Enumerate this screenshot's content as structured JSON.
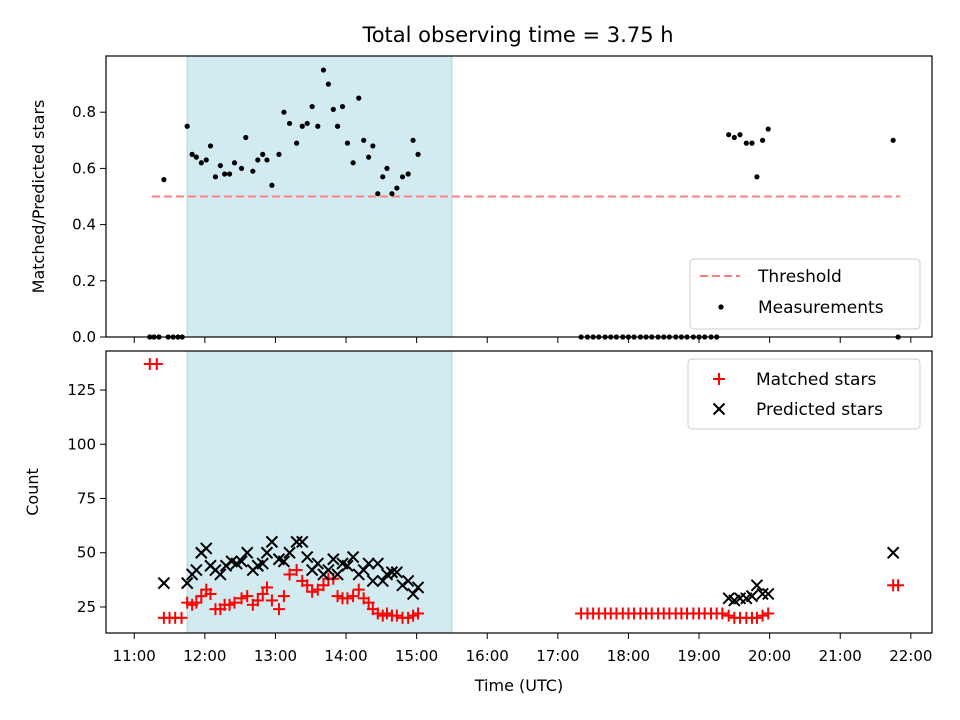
{
  "chart_data": {
    "type": "scatter",
    "title": "Total observing time = 3.75 h",
    "xlabel": "Time (UTC)",
    "x_unit": "hour",
    "xlim": [
      10.6,
      22.3
    ],
    "xticks": [
      11,
      12,
      13,
      14,
      15,
      16,
      17,
      18,
      19,
      20,
      21,
      22
    ],
    "xtick_labels": [
      "11:00",
      "12:00",
      "13:00",
      "14:00",
      "15:00",
      "16:00",
      "17:00",
      "18:00",
      "19:00",
      "20:00",
      "21:00",
      "22:00"
    ],
    "shaded_interval": [
      11.75,
      15.5
    ],
    "shade_color": "#d2ebf1",
    "panels": [
      {
        "ylabel": "Matched/Predicted stars",
        "ylim": [
          0,
          1.0
        ],
        "yticks": [
          0.0,
          0.2,
          0.4,
          0.6,
          0.8
        ],
        "ytick_labels": [
          "0.0",
          "0.2",
          "0.4",
          "0.6",
          "0.8"
        ],
        "legend": {
          "position": "lower-right",
          "entries": [
            "Threshold",
            "Measurements"
          ]
        },
        "threshold": {
          "name": "Threshold",
          "y": 0.5,
          "x_range": [
            11.25,
            21.85
          ],
          "color": "#ff7f7f"
        },
        "series": [
          {
            "name": "Measurements",
            "marker": "dot",
            "color": "#000000",
            "points": [
              [
                11.22,
                0.0
              ],
              [
                11.28,
                0.0
              ],
              [
                11.35,
                0.0
              ],
              [
                11.42,
                0.56
              ],
              [
                11.48,
                0.0
              ],
              [
                11.55,
                0.0
              ],
              [
                11.62,
                0.0
              ],
              [
                11.68,
                0.0
              ],
              [
                11.75,
                0.75
              ],
              [
                11.82,
                0.65
              ],
              [
                11.88,
                0.64
              ],
              [
                11.95,
                0.62
              ],
              [
                12.02,
                0.63
              ],
              [
                12.08,
                0.68
              ],
              [
                12.15,
                0.57
              ],
              [
                12.22,
                0.61
              ],
              [
                12.28,
                0.58
              ],
              [
                12.35,
                0.58
              ],
              [
                12.42,
                0.62
              ],
              [
                12.52,
                0.6
              ],
              [
                12.58,
                0.71
              ],
              [
                12.68,
                0.59
              ],
              [
                12.75,
                0.63
              ],
              [
                12.82,
                0.65
              ],
              [
                12.88,
                0.63
              ],
              [
                12.95,
                0.54
              ],
              [
                13.05,
                0.65
              ],
              [
                13.12,
                0.8
              ],
              [
                13.2,
                0.76
              ],
              [
                13.3,
                0.69
              ],
              [
                13.38,
                0.75
              ],
              [
                13.45,
                0.76
              ],
              [
                13.52,
                0.82
              ],
              [
                13.6,
                0.75
              ],
              [
                13.68,
                0.95
              ],
              [
                13.75,
                0.9
              ],
              [
                13.82,
                0.81
              ],
              [
                13.88,
                0.75
              ],
              [
                13.95,
                0.82
              ],
              [
                14.02,
                0.69
              ],
              [
                14.1,
                0.62
              ],
              [
                14.18,
                0.85
              ],
              [
                14.25,
                0.7
              ],
              [
                14.32,
                0.64
              ],
              [
                14.38,
                0.68
              ],
              [
                14.45,
                0.51
              ],
              [
                14.52,
                0.57
              ],
              [
                14.58,
                0.6
              ],
              [
                14.65,
                0.51
              ],
              [
                14.72,
                0.53
              ],
              [
                14.8,
                0.57
              ],
              [
                14.88,
                0.58
              ],
              [
                14.95,
                0.7
              ],
              [
                15.02,
                0.65
              ],
              [
                17.33,
                0.0
              ],
              [
                17.42,
                0.0
              ],
              [
                17.5,
                0.0
              ],
              [
                17.58,
                0.0
              ],
              [
                17.67,
                0.0
              ],
              [
                17.75,
                0.0
              ],
              [
                17.83,
                0.0
              ],
              [
                17.92,
                0.0
              ],
              [
                18.0,
                0.0
              ],
              [
                18.08,
                0.0
              ],
              [
                18.17,
                0.0
              ],
              [
                18.25,
                0.0
              ],
              [
                18.33,
                0.0
              ],
              [
                18.42,
                0.0
              ],
              [
                18.5,
                0.0
              ],
              [
                18.58,
                0.0
              ],
              [
                18.67,
                0.0
              ],
              [
                18.75,
                0.0
              ],
              [
                18.83,
                0.0
              ],
              [
                18.92,
                0.0
              ],
              [
                19.0,
                0.0
              ],
              [
                19.08,
                0.0
              ],
              [
                19.17,
                0.0
              ],
              [
                19.25,
                0.0
              ],
              [
                19.42,
                0.72
              ],
              [
                19.5,
                0.71
              ],
              [
                19.58,
                0.72
              ],
              [
                19.67,
                0.69
              ],
              [
                19.75,
                0.69
              ],
              [
                19.82,
                0.57
              ],
              [
                19.9,
                0.7
              ],
              [
                19.98,
                0.74
              ],
              [
                21.75,
                0.7
              ],
              [
                21.82,
                0.0
              ]
            ]
          }
        ]
      },
      {
        "ylabel": "Count",
        "ylim": [
          13,
          143
        ],
        "yticks": [
          25,
          50,
          75,
          100,
          125
        ],
        "ytick_labels": [
          "25",
          "50",
          "75",
          "100",
          "125"
        ],
        "legend": {
          "position": "upper-right",
          "entries": [
            "Matched stars",
            "Predicted stars"
          ]
        },
        "series": [
          {
            "name": "Matched stars",
            "marker": "plus",
            "color": "#ff0000",
            "points": [
              [
                11.22,
                137
              ],
              [
                11.32,
                137
              ],
              [
                11.42,
                20
              ],
              [
                11.5,
                20
              ],
              [
                11.58,
                20
              ],
              [
                11.67,
                20
              ],
              [
                11.75,
                27
              ],
              [
                11.82,
                26
              ],
              [
                11.88,
                27
              ],
              [
                11.95,
                30
              ],
              [
                12.02,
                33
              ],
              [
                12.08,
                31
              ],
              [
                12.15,
                24
              ],
              [
                12.22,
                24
              ],
              [
                12.28,
                26
              ],
              [
                12.35,
                26
              ],
              [
                12.42,
                27
              ],
              [
                12.52,
                29
              ],
              [
                12.6,
                30
              ],
              [
                12.68,
                26
              ],
              [
                12.75,
                28
              ],
              [
                12.82,
                31
              ],
              [
                12.88,
                34
              ],
              [
                12.95,
                28
              ],
              [
                13.05,
                24
              ],
              [
                13.12,
                30
              ],
              [
                13.2,
                40
              ],
              [
                13.3,
                42
              ],
              [
                13.38,
                37
              ],
              [
                13.45,
                35
              ],
              [
                13.52,
                32
              ],
              [
                13.6,
                33
              ],
              [
                13.68,
                35
              ],
              [
                13.75,
                38
              ],
              [
                13.82,
                38
              ],
              [
                13.88,
                30
              ],
              [
                13.95,
                29
              ],
              [
                14.02,
                29
              ],
              [
                14.1,
                30
              ],
              [
                14.18,
                33
              ],
              [
                14.25,
                29
              ],
              [
                14.32,
                27
              ],
              [
                14.38,
                24
              ],
              [
                14.45,
                22
              ],
              [
                14.52,
                21
              ],
              [
                14.58,
                22
              ],
              [
                14.65,
                21
              ],
              [
                14.72,
                21
              ],
              [
                14.8,
                20
              ],
              [
                14.88,
                20
              ],
              [
                14.95,
                21
              ],
              [
                15.02,
                22
              ],
              [
                17.33,
                22
              ],
              [
                17.42,
                22
              ],
              [
                17.5,
                22
              ],
              [
                17.58,
                22
              ],
              [
                17.67,
                22
              ],
              [
                17.75,
                22
              ],
              [
                17.83,
                22
              ],
              [
                17.92,
                22
              ],
              [
                18.0,
                22
              ],
              [
                18.08,
                22
              ],
              [
                18.17,
                22
              ],
              [
                18.25,
                22
              ],
              [
                18.33,
                22
              ],
              [
                18.42,
                22
              ],
              [
                18.5,
                22
              ],
              [
                18.58,
                22
              ],
              [
                18.67,
                22
              ],
              [
                18.75,
                22
              ],
              [
                18.83,
                22
              ],
              [
                18.92,
                22
              ],
              [
                19.0,
                22
              ],
              [
                19.08,
                22
              ],
              [
                19.17,
                22
              ],
              [
                19.25,
                22
              ],
              [
                19.33,
                22
              ],
              [
                19.42,
                21
              ],
              [
                19.5,
                20
              ],
              [
                19.58,
                20
              ],
              [
                19.67,
                20
              ],
              [
                19.75,
                20
              ],
              [
                19.82,
                20
              ],
              [
                19.9,
                21
              ],
              [
                19.98,
                22
              ],
              [
                21.75,
                35
              ],
              [
                21.82,
                35
              ]
            ]
          },
          {
            "name": "Predicted stars",
            "marker": "x",
            "color": "#000000",
            "points": [
              [
                11.42,
                36
              ],
              [
                11.75,
                36
              ],
              [
                11.82,
                40
              ],
              [
                11.88,
                42
              ],
              [
                11.95,
                50
              ],
              [
                12.02,
                52
              ],
              [
                12.08,
                44
              ],
              [
                12.15,
                42
              ],
              [
                12.22,
                40
              ],
              [
                12.3,
                44
              ],
              [
                12.38,
                46
              ],
              [
                12.45,
                45
              ],
              [
                12.52,
                46
              ],
              [
                12.6,
                50
              ],
              [
                12.68,
                42
              ],
              [
                12.75,
                44
              ],
              [
                12.82,
                45
              ],
              [
                12.88,
                50
              ],
              [
                12.95,
                55
              ],
              [
                13.05,
                47
              ],
              [
                13.12,
                46
              ],
              [
                13.2,
                50
              ],
              [
                13.3,
                55
              ],
              [
                13.38,
                55
              ],
              [
                13.45,
                48
              ],
              [
                13.52,
                42
              ],
              [
                13.6,
                45
              ],
              [
                13.68,
                40
              ],
              [
                13.75,
                42
              ],
              [
                13.82,
                47
              ],
              [
                13.88,
                40
              ],
              [
                13.95,
                45
              ],
              [
                14.02,
                44
              ],
              [
                14.1,
                48
              ],
              [
                14.18,
                40
              ],
              [
                14.25,
                42
              ],
              [
                14.32,
                45
              ],
              [
                14.38,
                37
              ],
              [
                14.45,
                45
              ],
              [
                14.52,
                37
              ],
              [
                14.58,
                40
              ],
              [
                14.65,
                41
              ],
              [
                14.72,
                41
              ],
              [
                14.8,
                35
              ],
              [
                14.88,
                37
              ],
              [
                14.95,
                31
              ],
              [
                15.02,
                34
              ],
              [
                19.42,
                29
              ],
              [
                19.5,
                28
              ],
              [
                19.58,
                29
              ],
              [
                19.67,
                29
              ],
              [
                19.75,
                30
              ],
              [
                19.82,
                35
              ],
              [
                19.9,
                31
              ],
              [
                19.98,
                31
              ],
              [
                21.75,
                50
              ]
            ]
          }
        ]
      }
    ]
  }
}
